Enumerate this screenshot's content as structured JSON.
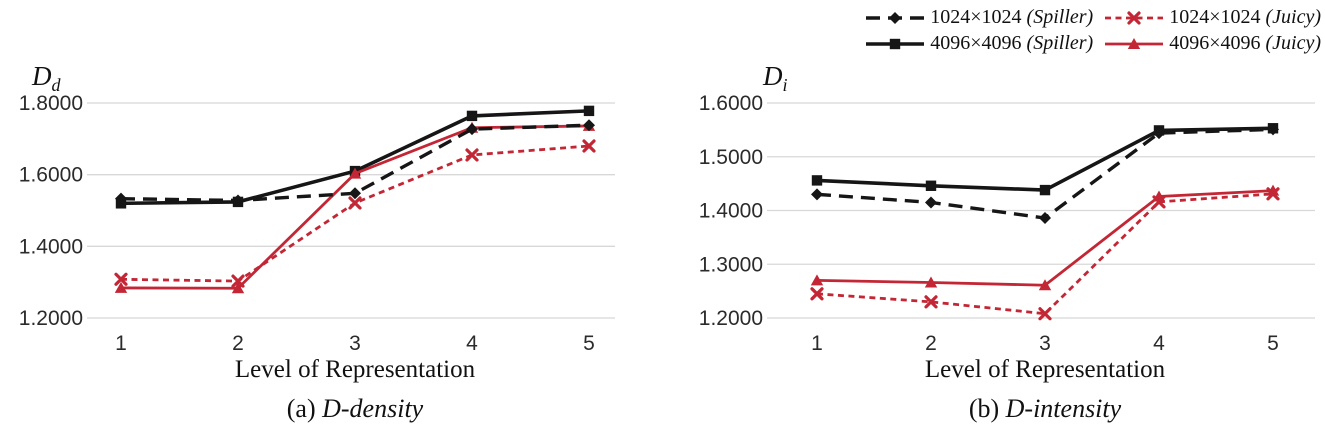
{
  "palette": {
    "black": "#161616",
    "red": "#c32735",
    "grid": "#d8d8d8",
    "tick_text": "#2b2b2b"
  },
  "series_styles": {
    "spiller1024": {
      "color": "black",
      "dash": "14 8",
      "marker": "diamond",
      "width": 3.4
    },
    "spiller4096": {
      "color": "black",
      "dash": "",
      "marker": "square",
      "width": 3.6
    },
    "juicy1024": {
      "color": "red",
      "dash": "6 4.5",
      "marker": "x",
      "width": 2.8
    },
    "juicy4096": {
      "color": "red",
      "dash": "",
      "marker": "triangle",
      "width": 2.8
    }
  },
  "legend": {
    "position": "top-right",
    "items": [
      {
        "key": "spiller1024",
        "size": "1024×1024",
        "variant": "(Spiller)"
      },
      {
        "key": "juicy1024",
        "size": "1024×1024",
        "variant": "(Juicy)"
      },
      {
        "key": "spiller4096",
        "size": "4096×4096",
        "variant": "(Spiller)"
      },
      {
        "key": "juicy4096",
        "size": "4096×4096",
        "variant": "(Juicy)"
      }
    ]
  },
  "chart_data": [
    {
      "type": "line",
      "id": "d-density",
      "axis_label": {
        "base": "D",
        "sub": "d"
      },
      "caption": {
        "prefix": "(a)",
        "label": "D-density"
      },
      "xlabel": "Level of Representation",
      "x": [
        1,
        2,
        3,
        4,
        5
      ],
      "xtick_labels": [
        "1",
        "2",
        "3",
        "4",
        "5"
      ],
      "ylim": [
        1.2,
        1.8
      ],
      "yticks": [
        1.2,
        1.4,
        1.6,
        1.8
      ],
      "ytick_labels": [
        "1.2000",
        "1.4000",
        "1.6000",
        "1.8000"
      ],
      "grid": true,
      "series": [
        {
          "key": "spiller1024",
          "name": "1024×1024 (Spiller)",
          "values": [
            1.533,
            1.528,
            1.548,
            1.727,
            1.738
          ]
        },
        {
          "key": "spiller4096",
          "name": "4096×4096 (Spiller)",
          "values": [
            1.52,
            1.524,
            1.61,
            1.764,
            1.778
          ]
        },
        {
          "key": "juicy1024",
          "name": "1024×1024 (Juicy)",
          "values": [
            1.308,
            1.303,
            1.521,
            1.655,
            1.68
          ]
        },
        {
          "key": "juicy4096",
          "name": "4096×4096 (Juicy)",
          "values": [
            1.284,
            1.283,
            1.603,
            1.731,
            1.736
          ]
        }
      ]
    },
    {
      "type": "line",
      "id": "d-intensity",
      "axis_label": {
        "base": "D",
        "sub": "i"
      },
      "caption": {
        "prefix": "(b)",
        "label": "D-intensity"
      },
      "xlabel": "Level of Representation",
      "x": [
        1,
        2,
        3,
        4,
        5
      ],
      "xtick_labels": [
        "1",
        "2",
        "3",
        "4",
        "5"
      ],
      "ylim": [
        1.2,
        1.6
      ],
      "yticks": [
        1.2,
        1.3,
        1.4,
        1.5,
        1.6
      ],
      "ytick_labels": [
        "1.2000",
        "1.3000",
        "1.4000",
        "1.5000",
        "1.6000"
      ],
      "grid": true,
      "series": [
        {
          "key": "spiller1024",
          "name": "1024×1024 (Spiller)",
          "values": [
            1.43,
            1.415,
            1.386,
            1.544,
            1.551
          ]
        },
        {
          "key": "spiller4096",
          "name": "4096×4096 (Spiller)",
          "values": [
            1.456,
            1.446,
            1.438,
            1.549,
            1.553
          ]
        },
        {
          "key": "juicy1024",
          "name": "1024×1024 (Juicy)",
          "values": [
            1.245,
            1.23,
            1.208,
            1.416,
            1.431
          ]
        },
        {
          "key": "juicy4096",
          "name": "4096×4096 (Juicy)",
          "values": [
            1.27,
            1.266,
            1.261,
            1.426,
            1.437
          ]
        }
      ]
    }
  ]
}
